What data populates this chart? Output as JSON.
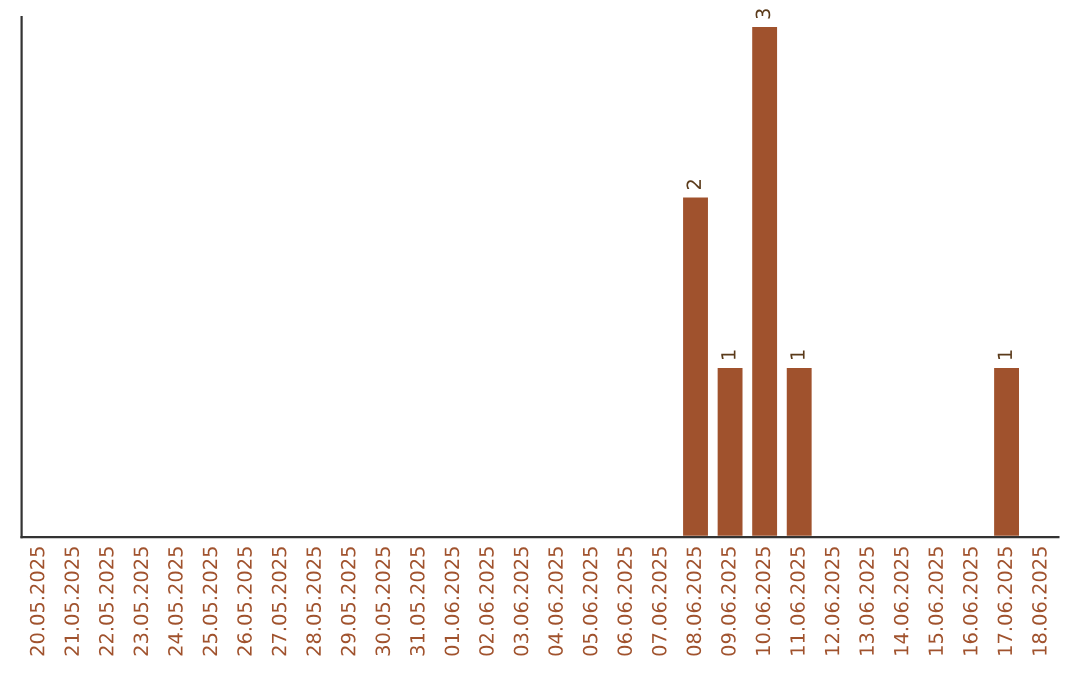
{
  "chart_data": {
    "type": "bar",
    "categories": [
      "20.05.2025",
      "21.05.2025",
      "22.05.2025",
      "23.05.2025",
      "24.05.2025",
      "25.05.2025",
      "26.05.2025",
      "27.05.2025",
      "28.05.2025",
      "29.05.2025",
      "30.05.2025",
      "31.05.2025",
      "01.06.2025",
      "02.06.2025",
      "03.06.2025",
      "04.06.2025",
      "05.06.2025",
      "06.06.2025",
      "07.06.2025",
      "08.06.2025",
      "09.06.2025",
      "10.06.2025",
      "11.06.2025",
      "12.06.2025",
      "13.06.2025",
      "14.06.2025",
      "15.06.2025",
      "16.06.2025",
      "17.06.2025",
      "18.06.2025"
    ],
    "values": [
      null,
      null,
      null,
      null,
      null,
      null,
      null,
      null,
      null,
      null,
      null,
      null,
      null,
      null,
      null,
      null,
      null,
      null,
      null,
      2,
      1,
      3,
      1,
      null,
      null,
      null,
      null,
      null,
      1,
      null
    ],
    "data_labels": true,
    "color": "#a0522d",
    "ylim": [
      0,
      3.05
    ],
    "tick_labels": "x",
    "grid": false,
    "legend": false
  }
}
